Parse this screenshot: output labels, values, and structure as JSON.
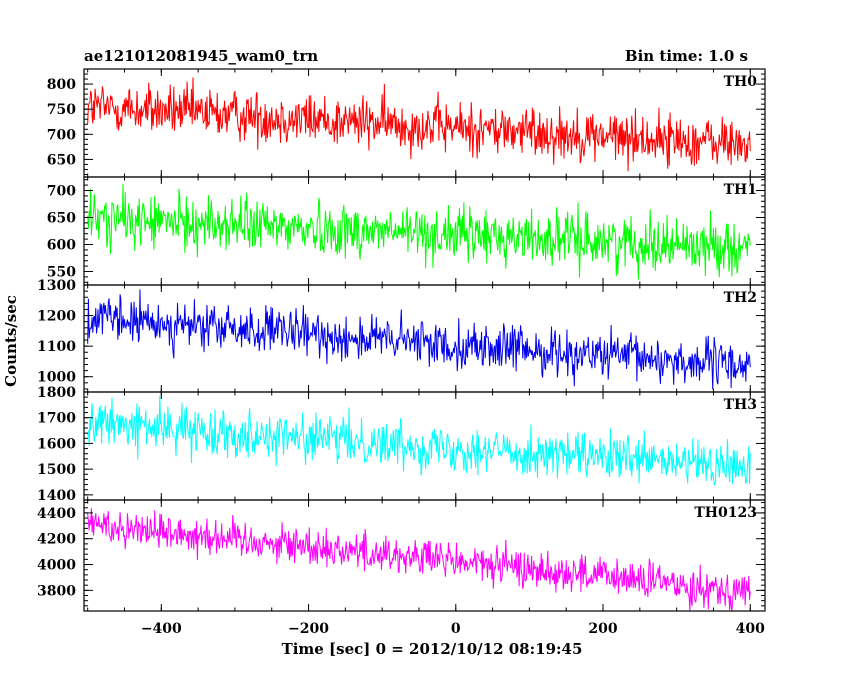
{
  "header": {
    "title": "ae121012081945_wam0_trn",
    "bin_time": "Bin time: 1.0 s"
  },
  "chart_data": {
    "type": "line",
    "xlabel": "Time [sec] 0 = 2012/10/12 08:19:45",
    "ylabel": "Counts/sec",
    "xlim": [
      -505,
      420
    ],
    "x_ticks": [
      -400,
      -200,
      0,
      200,
      400
    ],
    "x_tick_labels": [
      "−400",
      "−200",
      "0",
      "200",
      "400"
    ],
    "x_range_data": [
      -500,
      400
    ],
    "bin_seconds": 1.0,
    "panels": [
      {
        "name": "TH0",
        "color": "#ff0000",
        "ylim": [
          615,
          830
        ],
        "yticks": [
          650,
          700,
          750,
          800
        ],
        "trend_start": 755,
        "trend_end": 680,
        "noise": 26
      },
      {
        "name": "TH1",
        "color": "#00ff00",
        "ylim": [
          525,
          725
        ],
        "yticks": [
          550,
          600,
          650,
          700
        ],
        "trend_start": 648,
        "trend_end": 595,
        "noise": 25
      },
      {
        "name": "TH2",
        "color": "#0000ee",
        "ylim": [
          950,
          1300
        ],
        "yticks": [
          1000,
          1100,
          1200,
          1300
        ],
        "trend_start": 1190,
        "trend_end": 1035,
        "noise": 38
      },
      {
        "name": "TH3",
        "color": "#00ffff",
        "ylim": [
          1380,
          1800
        ],
        "yticks": [
          1400,
          1500,
          1600,
          1700,
          1800
        ],
        "trend_start": 1680,
        "trend_end": 1505,
        "noise": 45
      },
      {
        "name": "TH0123",
        "color": "#ff00ff",
        "ylim": [
          3640,
          4500
        ],
        "yticks": [
          3800,
          4000,
          4200,
          4400
        ],
        "trend_start": 4320,
        "trend_end": 3790,
        "noise": 75
      }
    ]
  }
}
